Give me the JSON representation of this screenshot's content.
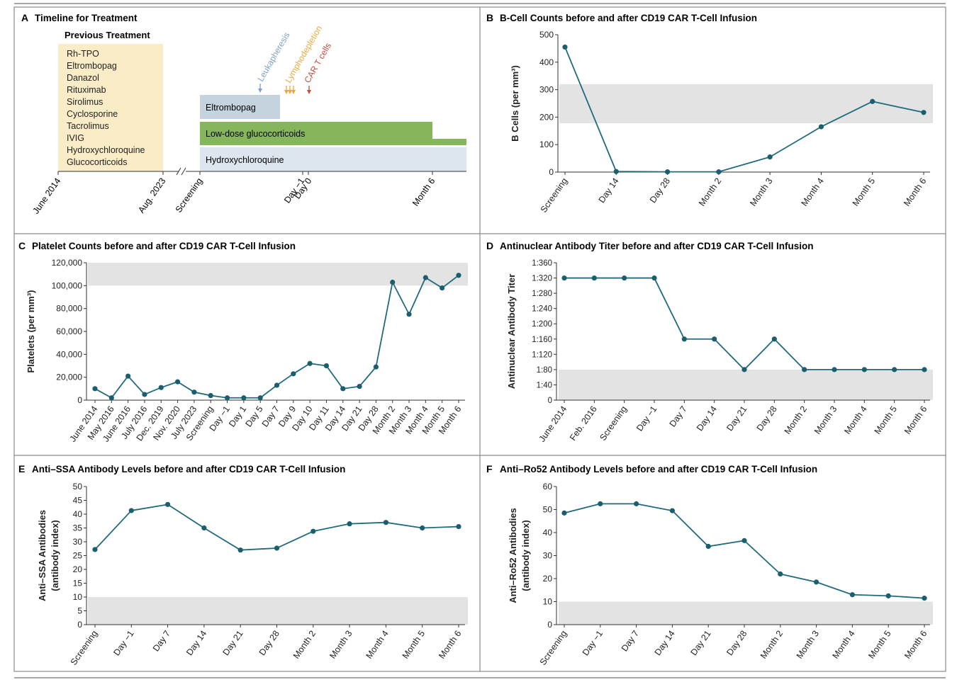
{
  "colors": {
    "line": "#1f6b7d",
    "marker": "#1b5e6e",
    "reference_band": "#e3e3e3",
    "axis": "#333333",
    "prev_treatment_box": "#fbecc8",
    "eltrombopag_bar": "#c5d3df",
    "glucocorticoid_bar": "#86b65c",
    "hcq_bar": "#dde5ee",
    "leukapheresis": "#7e9fc4",
    "lymphodepletion": "#e8a93a",
    "car_t": "#c64a3e",
    "panel_border": "#8a8a8a"
  },
  "panels": {
    "A": {
      "letter": "A",
      "title": "Timeline for Treatment",
      "previous_treatment_heading": "Previous Treatment",
      "previous_treatments": [
        "Rh-TPO",
        "Eltrombopag",
        "Danazol",
        "Rituximab",
        "Sirolimus",
        "Cyclosporine",
        "Tacrolimus",
        "IVIG",
        "Hydroxychloroquine",
        "Glucocorticoids"
      ],
      "bars": [
        "Eltrombopag",
        "Low-dose glucocorticoids",
        "Hydroxychloroquine"
      ],
      "events": [
        "Leukapheresis",
        "Lymphodepletion",
        "CAR T cells"
      ],
      "axis_labels": [
        "June 2014",
        "Aug. 2023",
        "Screening",
        "Day −1",
        "Day 0",
        "Month 6"
      ]
    },
    "B": {
      "letter": "B",
      "title": "B-Cell Counts before and after CD19 CAR T-Cell Infusion"
    },
    "C": {
      "letter": "C",
      "title": "Platelet Counts before and after CD19 CAR T-Cell Infusion"
    },
    "D": {
      "letter": "D",
      "title": "Antinuclear Antibody Titer before and after CD19 CAR T-Cell Infusion"
    },
    "E": {
      "letter": "E",
      "title": "Anti–SSA Antibody Levels before and after CD19 CAR T-Cell Infusion"
    },
    "F": {
      "letter": "F",
      "title": "Anti–Ro52 Antibody Levels before and after CD19 CAR T-Cell Infusion"
    }
  },
  "chart_data": [
    {
      "id": "B",
      "type": "line",
      "title": "B-Cell Counts before and after CD19 CAR T-Cell Infusion",
      "ylabel": "B Cells (per mm³)",
      "categories": [
        "Screening",
        "Day 14",
        "Day 28",
        "Month 2",
        "Month 3",
        "Month 4",
        "Month 5",
        "Month 6"
      ],
      "values": [
        455,
        2,
        1,
        1,
        55,
        165,
        257,
        217
      ],
      "ylim": [
        0,
        500
      ],
      "yticks": [
        0,
        100,
        200,
        300,
        400,
        500
      ],
      "ytick_labels": [
        "0",
        "100",
        "200",
        "300",
        "400",
        "500"
      ],
      "reference_band": [
        178,
        320
      ]
    },
    {
      "id": "C",
      "type": "line",
      "title": "Platelet Counts before and after CD19 CAR T-Cell Infusion",
      "ylabel": "Platelets (per mm³)",
      "categories": [
        "June 2014",
        "May 2016",
        "June 2016",
        "July 2016",
        "Dec. 2019",
        "Nov. 2020",
        "July 2023",
        "Screening",
        "Day −1",
        "Day 1",
        "Day 5",
        "Day 7",
        "Day 9",
        "Day 10",
        "Day 11",
        "Day 14",
        "Day 21",
        "Day 28",
        "Month 2",
        "Month 3",
        "Month 4",
        "Month 5",
        "Month 6"
      ],
      "values": [
        10000,
        2000,
        21000,
        5000,
        11000,
        16000,
        7000,
        4000,
        2000,
        2000,
        2000,
        13000,
        23000,
        32000,
        30000,
        10000,
        12000,
        29000,
        103000,
        75000,
        107000,
        98000,
        109000
      ],
      "ylim": [
        0,
        120000
      ],
      "yticks": [
        0,
        20000,
        40000,
        60000,
        80000,
        100000,
        120000
      ],
      "ytick_labels": [
        "0",
        "20,000",
        "40,000",
        "60,000",
        "80,000",
        "100,000",
        "120,000"
      ],
      "reference_band": [
        100000,
        120000
      ]
    },
    {
      "id": "D",
      "type": "line",
      "title": "Antinuclear Antibody Titer before and after CD19 CAR T-Cell Infusion",
      "ylabel": "Antinuclear Antibody Titer",
      "categories": [
        "June 2014",
        "Feb. 2016",
        "Screening",
        "Day −1",
        "Day 7",
        "Day 14",
        "Day 21",
        "Day 28",
        "Month 2",
        "Month 3",
        "Month 4",
        "Month 5",
        "Month 6"
      ],
      "values": [
        320,
        320,
        320,
        320,
        160,
        160,
        80,
        160,
        80,
        80,
        80,
        80,
        80
      ],
      "ylim": [
        0,
        360
      ],
      "yticks": [
        0,
        40,
        80,
        120,
        160,
        200,
        240,
        280,
        320,
        360
      ],
      "ytick_labels": [
        "0",
        "1:40",
        "1:80",
        "1:120",
        "1:160",
        "1:200",
        "1:240",
        "1:280",
        "1:320",
        "1:360"
      ],
      "reference_band": [
        0,
        80
      ]
    },
    {
      "id": "E",
      "type": "line",
      "title": "Anti–SSA Antibody Levels before and after CD19 CAR T-Cell Infusion",
      "ylabel": "Anti–SSA Antibodies",
      "ylabel2": "(antibody index)",
      "categories": [
        "Screening",
        "Day −1",
        "Day 7",
        "Day 14",
        "Day 21",
        "Day 28",
        "Month 2",
        "Month 3",
        "Month 4",
        "Month 5",
        "Month 6"
      ],
      "values": [
        27.2,
        41.3,
        43.5,
        35,
        27,
        27.7,
        33.8,
        36.5,
        37,
        35,
        35.5
      ],
      "ylim": [
        0,
        50
      ],
      "yticks": [
        0,
        5,
        10,
        15,
        20,
        25,
        30,
        35,
        40,
        45,
        50
      ],
      "ytick_labels": [
        "0",
        "5",
        "10",
        "15",
        "20",
        "25",
        "30",
        "35",
        "40",
        "45",
        "50"
      ],
      "reference_band": [
        0,
        10
      ]
    },
    {
      "id": "F",
      "type": "line",
      "title": "Anti–Ro52 Antibody Levels before and after CD19 CAR T-Cell Infusion",
      "ylabel": "Anti–Ro52 Antibodies",
      "ylabel2": "(antibody index)",
      "categories": [
        "Screening",
        "Day −1",
        "Day 7",
        "Day 14",
        "Day 21",
        "Day 28",
        "Month 2",
        "Month 3",
        "Month 4",
        "Month 5",
        "Month 6"
      ],
      "values": [
        48.5,
        52.5,
        52.5,
        49.5,
        34,
        36.5,
        22,
        18.5,
        13,
        12.5,
        11.5
      ],
      "ylim": [
        0,
        60
      ],
      "yticks": [
        0,
        10,
        20,
        30,
        40,
        50,
        60
      ],
      "ytick_labels": [
        "0",
        "10",
        "20",
        "30",
        "40",
        "50",
        "60"
      ],
      "reference_band": [
        0,
        10
      ]
    }
  ]
}
